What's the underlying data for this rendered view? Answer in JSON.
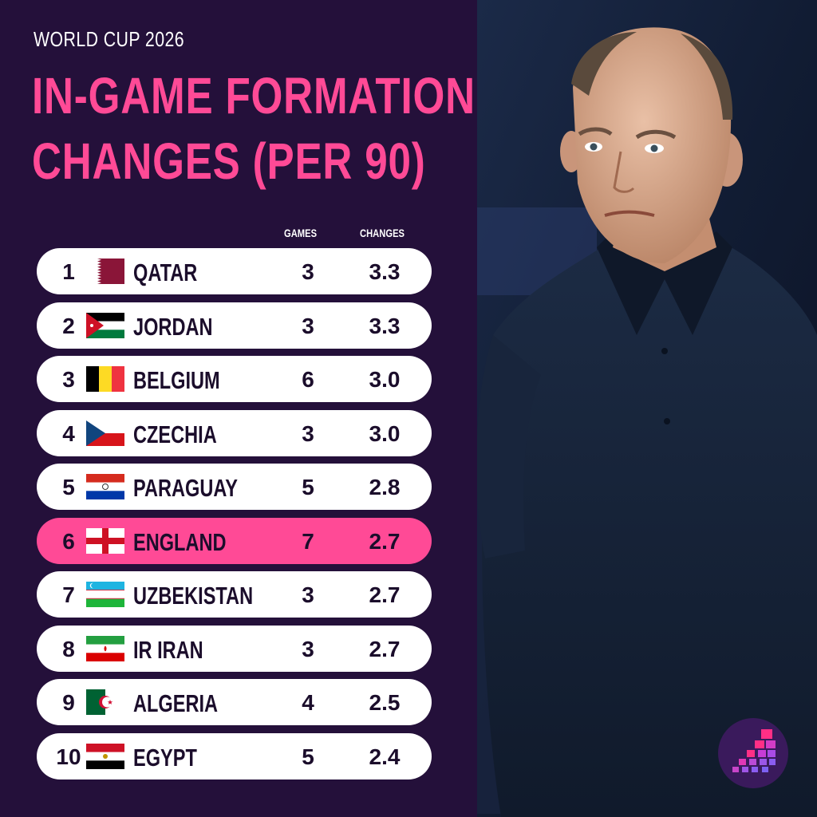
{
  "header": {
    "kicker": "WORLD CUP 2026",
    "title_line1": "IN-GAME FORMATION",
    "title_line2": "CHANGES (PER 90)"
  },
  "columns": {
    "games": "GAMES",
    "changes": "CHANGES"
  },
  "rows": [
    {
      "rank": "1",
      "country": "QATAR",
      "flag_icon": "qatar-flag",
      "games": "3",
      "changes": "3.3"
    },
    {
      "rank": "2",
      "country": "JORDAN",
      "flag_icon": "jordan-flag",
      "games": "3",
      "changes": "3.3"
    },
    {
      "rank": "3",
      "country": "BELGIUM",
      "flag_icon": "belgium-flag",
      "games": "6",
      "changes": "3.0"
    },
    {
      "rank": "4",
      "country": "CZECHIA",
      "flag_icon": "czechia-flag",
      "games": "3",
      "changes": "3.0"
    },
    {
      "rank": "5",
      "country": "PARAGUAY",
      "flag_icon": "paraguay-flag",
      "games": "5",
      "changes": "2.8"
    },
    {
      "rank": "6",
      "country": "ENGLAND",
      "flag_icon": "england-flag",
      "games": "7",
      "changes": "2.7",
      "highlighted": true
    },
    {
      "rank": "7",
      "country": "UZBEKISTAN",
      "flag_icon": "uzbekistan-flag",
      "games": "3",
      "changes": "2.7"
    },
    {
      "rank": "8",
      "country": "IR IRAN",
      "flag_icon": "iran-flag",
      "games": "3",
      "changes": "2.7"
    },
    {
      "rank": "9",
      "country": "ALGERIA",
      "flag_icon": "algeria-flag",
      "games": "4",
      "changes": "2.5"
    },
    {
      "rank": "10",
      "country": "EGYPT",
      "flag_icon": "egypt-flag",
      "games": "5",
      "changes": "2.4"
    }
  ],
  "colors": {
    "background": "#24103a",
    "accent_pink": "#ff4a96",
    "row_bg": "#ffffff",
    "text_dark": "#1b0d2b"
  },
  "photo": {
    "icon": "coach-photo"
  },
  "logo": {
    "icon": "brand-logo-icon"
  }
}
